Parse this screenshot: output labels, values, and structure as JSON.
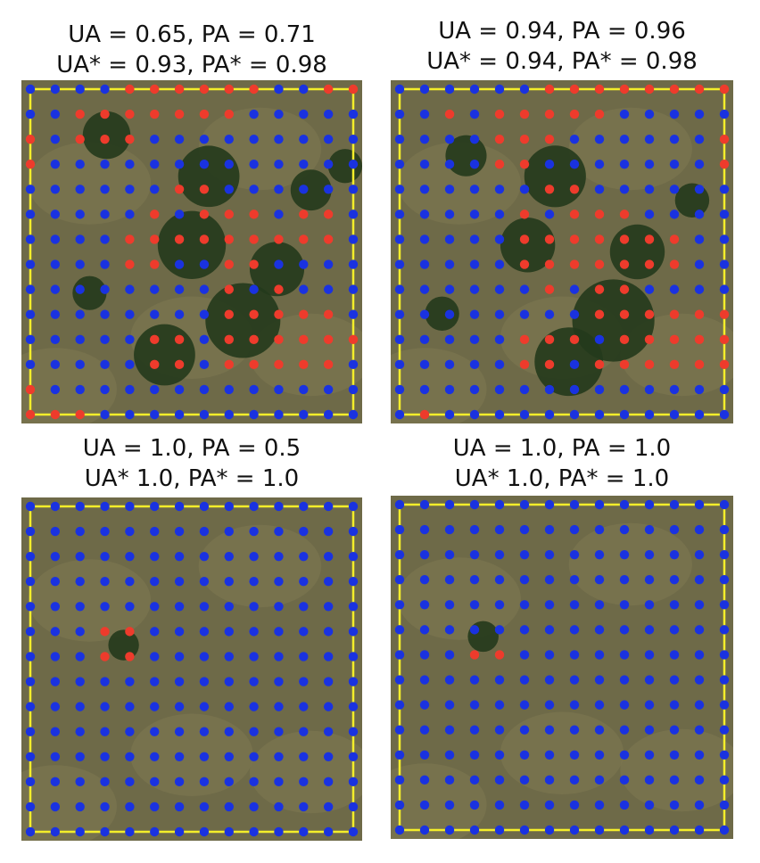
{
  "colors": {
    "grass": "#6e6a48",
    "grass_light": "#8a8058",
    "tree": "#233a1c",
    "boundary": "#f4ee2a",
    "point_blue": "#1a32e0",
    "point_red": "#ee3b2c"
  },
  "legend_semantics": {
    "blue": "non-canopy sample point",
    "red": "canopy sample point"
  },
  "panels": [
    {
      "id": "top-left",
      "caption_line1": "UA = 0.65, PA = 0.71",
      "caption_line2": "UA* = 0.93, PA* = 0.98",
      "grid_cols": 14,
      "grid_rows": 14,
      "red_points": [
        [
          4,
          0
        ],
        [
          5,
          0
        ],
        [
          6,
          0
        ],
        [
          7,
          0
        ],
        [
          8,
          0
        ],
        [
          9,
          0
        ],
        [
          12,
          0
        ],
        [
          13,
          0
        ],
        [
          2,
          1
        ],
        [
          3,
          1
        ],
        [
          4,
          1
        ],
        [
          5,
          1
        ],
        [
          6,
          1
        ],
        [
          7,
          1
        ],
        [
          8,
          1
        ],
        [
          0,
          2
        ],
        [
          2,
          2
        ],
        [
          3,
          2
        ],
        [
          4,
          2
        ],
        [
          0,
          3
        ],
        [
          6,
          4
        ],
        [
          7,
          4
        ],
        [
          5,
          5
        ],
        [
          7,
          5
        ],
        [
          8,
          5
        ],
        [
          9,
          5
        ],
        [
          11,
          5
        ],
        [
          12,
          5
        ],
        [
          4,
          6
        ],
        [
          5,
          6
        ],
        [
          6,
          6
        ],
        [
          7,
          6
        ],
        [
          8,
          6
        ],
        [
          9,
          6
        ],
        [
          10,
          6
        ],
        [
          11,
          6
        ],
        [
          12,
          6
        ],
        [
          4,
          7
        ],
        [
          5,
          7
        ],
        [
          8,
          7
        ],
        [
          9,
          7
        ],
        [
          8,
          8
        ],
        [
          10,
          8
        ],
        [
          8,
          9
        ],
        [
          9,
          9
        ],
        [
          10,
          9
        ],
        [
          11,
          9
        ],
        [
          12,
          9
        ],
        [
          5,
          10
        ],
        [
          6,
          10
        ],
        [
          8,
          10
        ],
        [
          9,
          10
        ],
        [
          10,
          10
        ],
        [
          11,
          10
        ],
        [
          12,
          10
        ],
        [
          13,
          10
        ],
        [
          5,
          11
        ],
        [
          6,
          11
        ],
        [
          8,
          11
        ],
        [
          9,
          11
        ],
        [
          10,
          11
        ],
        [
          11,
          11
        ],
        [
          12,
          11
        ],
        [
          0,
          12
        ],
        [
          0,
          13
        ],
        [
          1,
          13
        ],
        [
          2,
          13
        ]
      ],
      "trees": [
        [
          0.25,
          0.16,
          0.07
        ],
        [
          0.55,
          0.28,
          0.09
        ],
        [
          0.5,
          0.48,
          0.1
        ],
        [
          0.75,
          0.55,
          0.08
        ],
        [
          0.65,
          0.7,
          0.11
        ],
        [
          0.42,
          0.8,
          0.09
        ],
        [
          0.85,
          0.32,
          0.06
        ],
        [
          0.2,
          0.62,
          0.05
        ],
        [
          0.95,
          0.25,
          0.05
        ]
      ]
    },
    {
      "id": "top-right",
      "caption_line1": "UA = 0.94, PA = 0.96",
      "caption_line2": "UA* = 0.94, PA* = 0.98",
      "grid_cols": 14,
      "grid_rows": 14,
      "red_points": [
        [
          6,
          0
        ],
        [
          7,
          0
        ],
        [
          8,
          0
        ],
        [
          9,
          0
        ],
        [
          10,
          0
        ],
        [
          11,
          0
        ],
        [
          12,
          0
        ],
        [
          13,
          0
        ],
        [
          2,
          1
        ],
        [
          4,
          1
        ],
        [
          5,
          1
        ],
        [
          6,
          1
        ],
        [
          7,
          1
        ],
        [
          8,
          1
        ],
        [
          4,
          2
        ],
        [
          5,
          2
        ],
        [
          6,
          2
        ],
        [
          13,
          2
        ],
        [
          4,
          3
        ],
        [
          5,
          3
        ],
        [
          13,
          3
        ],
        [
          6,
          4
        ],
        [
          7,
          4
        ],
        [
          5,
          5
        ],
        [
          7,
          5
        ],
        [
          8,
          5
        ],
        [
          9,
          5
        ],
        [
          5,
          6
        ],
        [
          6,
          6
        ],
        [
          7,
          6
        ],
        [
          8,
          6
        ],
        [
          9,
          6
        ],
        [
          10,
          6
        ],
        [
          11,
          6
        ],
        [
          5,
          7
        ],
        [
          6,
          7
        ],
        [
          7,
          7
        ],
        [
          8,
          7
        ],
        [
          9,
          7
        ],
        [
          10,
          7
        ],
        [
          11,
          7
        ],
        [
          6,
          8
        ],
        [
          8,
          8
        ],
        [
          9,
          8
        ],
        [
          8,
          9
        ],
        [
          9,
          9
        ],
        [
          10,
          9
        ],
        [
          11,
          9
        ],
        [
          12,
          9
        ],
        [
          13,
          9
        ],
        [
          5,
          10
        ],
        [
          6,
          10
        ],
        [
          7,
          10
        ],
        [
          9,
          10
        ],
        [
          10,
          10
        ],
        [
          11,
          10
        ],
        [
          12,
          10
        ],
        [
          13,
          10
        ],
        [
          5,
          11
        ],
        [
          6,
          11
        ],
        [
          8,
          11
        ],
        [
          9,
          11
        ],
        [
          10,
          11
        ],
        [
          11,
          11
        ],
        [
          12,
          11
        ],
        [
          13,
          11
        ],
        [
          1,
          13
        ]
      ],
      "trees": [
        [
          0.22,
          0.22,
          0.06
        ],
        [
          0.48,
          0.28,
          0.09
        ],
        [
          0.4,
          0.48,
          0.08
        ],
        [
          0.72,
          0.5,
          0.08
        ],
        [
          0.65,
          0.7,
          0.12
        ],
        [
          0.52,
          0.82,
          0.1
        ],
        [
          0.88,
          0.35,
          0.05
        ],
        [
          0.15,
          0.68,
          0.05
        ]
      ]
    },
    {
      "id": "bottom-left",
      "caption_line1": "UA = 1.0, PA = 0.5",
      "caption_line2": "UA* 1.0, PA* = 1.0",
      "grid_cols": 14,
      "grid_rows": 14,
      "red_points": [
        [
          3,
          5
        ],
        [
          4,
          5
        ],
        [
          3,
          6
        ],
        [
          4,
          6
        ]
      ],
      "trees": [
        [
          0.3,
          0.43,
          0.045
        ]
      ]
    },
    {
      "id": "bottom-right",
      "caption_line1": "UA = 1.0, PA = 1.0",
      "caption_line2": "UA* 1.0, PA* = 1.0",
      "grid_cols": 14,
      "grid_rows": 14,
      "red_points": [
        [
          3,
          6
        ],
        [
          4,
          6
        ]
      ],
      "trees": [
        [
          0.27,
          0.41,
          0.045
        ]
      ]
    }
  ]
}
